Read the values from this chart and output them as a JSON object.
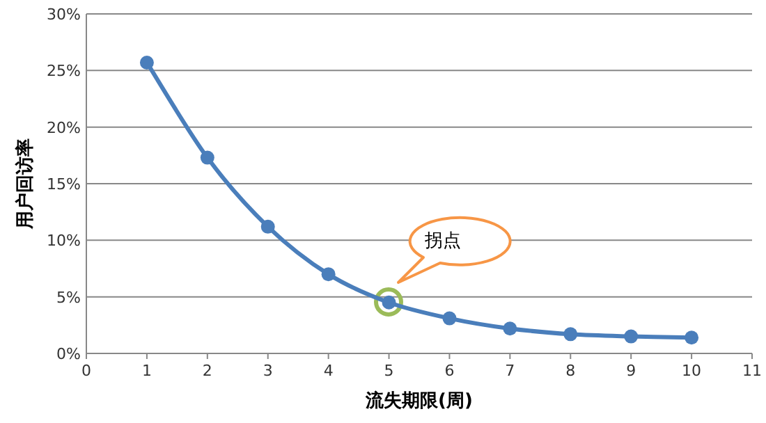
{
  "chart_data": {
    "type": "line",
    "xlabel": "流失期限(周)",
    "ylabel": "用户回访率",
    "x": [
      1,
      2,
      3,
      4,
      5,
      6,
      7,
      8,
      9,
      10
    ],
    "series": [
      {
        "color": "#4a7ebb",
        "values": [
          25.7,
          17.3,
          11.2,
          7.0,
          4.5,
          3.1,
          2.2,
          1.7,
          1.5,
          1.4
        ]
      }
    ],
    "xlim": [
      0,
      11
    ],
    "xticks": [
      0,
      1,
      2,
      3,
      4,
      5,
      6,
      7,
      8,
      9,
      10,
      11
    ],
    "ylim": [
      0,
      30
    ],
    "yticks": [
      {
        "value": 0,
        "label": "0%"
      },
      {
        "value": 5,
        "label": "5%"
      },
      {
        "value": 10,
        "label": "10%"
      },
      {
        "value": 15,
        "label": "15%"
      },
      {
        "value": 20,
        "label": "20%"
      },
      {
        "value": 25,
        "label": "25%"
      },
      {
        "value": 30,
        "label": "30%"
      }
    ],
    "grid": "y",
    "marker": "circle",
    "line_style": "solid",
    "annotations": [
      "拐点"
    ]
  }
}
